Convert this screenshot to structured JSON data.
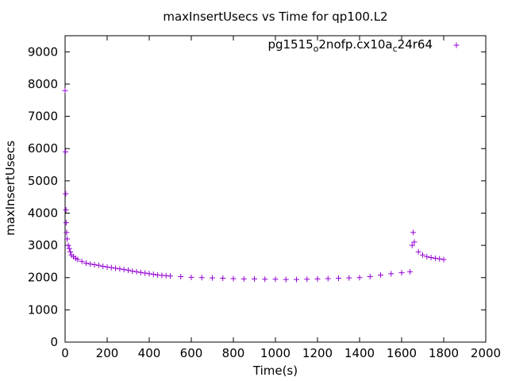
{
  "chart_data": {
    "type": "scatter",
    "title": "maxInsertUsecs vs Time for qp100.L2",
    "xlabel": "Time(s)",
    "ylabel": "maxInsertUsecs",
    "xlim": [
      0,
      2000
    ],
    "ylim": [
      0,
      9500
    ],
    "x_ticks": [
      0,
      200,
      400,
      600,
      800,
      1000,
      1200,
      1400,
      1600,
      1800,
      2000
    ],
    "y_ticks": [
      0,
      1000,
      2000,
      3000,
      4000,
      5000,
      6000,
      7000,
      8000,
      9000
    ],
    "grid": false,
    "legend_position": "top-right",
    "series_color": "#9400d3",
    "marker": "plus",
    "legend": {
      "label_main": "pg1515",
      "label_sub1": "o",
      "label_mid": "2nofp.cx10a",
      "label_sub2": "c",
      "label_end": "24r64"
    },
    "series": [
      {
        "name": "pg1515_o2nofp.cx10a_c24r64",
        "points": [
          [
            0,
            7800
          ],
          [
            2,
            5900
          ],
          [
            3,
            4600
          ],
          [
            4,
            4100
          ],
          [
            5,
            3700
          ],
          [
            7,
            3400
          ],
          [
            10,
            3200
          ],
          [
            15,
            3000
          ],
          [
            20,
            2900
          ],
          [
            25,
            2800
          ],
          [
            30,
            2700
          ],
          [
            40,
            2650
          ],
          [
            50,
            2600
          ],
          [
            60,
            2560
          ],
          [
            80,
            2500
          ],
          [
            100,
            2450
          ],
          [
            120,
            2420
          ],
          [
            140,
            2400
          ],
          [
            160,
            2380
          ],
          [
            180,
            2350
          ],
          [
            200,
            2330
          ],
          [
            220,
            2310
          ],
          [
            240,
            2290
          ],
          [
            260,
            2270
          ],
          [
            280,
            2250
          ],
          [
            300,
            2230
          ],
          [
            320,
            2200
          ],
          [
            340,
            2180
          ],
          [
            360,
            2160
          ],
          [
            380,
            2140
          ],
          [
            400,
            2120
          ],
          [
            420,
            2100
          ],
          [
            440,
            2080
          ],
          [
            460,
            2070
          ],
          [
            480,
            2060
          ],
          [
            500,
            2050
          ],
          [
            550,
            2030
          ],
          [
            600,
            2010
          ],
          [
            650,
            2000
          ],
          [
            700,
            1990
          ],
          [
            750,
            1980
          ],
          [
            800,
            1970
          ],
          [
            850,
            1960
          ],
          [
            900,
            1960
          ],
          [
            950,
            1950
          ],
          [
            1000,
            1950
          ],
          [
            1050,
            1940
          ],
          [
            1100,
            1940
          ],
          [
            1150,
            1950
          ],
          [
            1200,
            1960
          ],
          [
            1250,
            1970
          ],
          [
            1300,
            1980
          ],
          [
            1350,
            1990
          ],
          [
            1400,
            2000
          ],
          [
            1450,
            2030
          ],
          [
            1500,
            2080
          ],
          [
            1550,
            2120
          ],
          [
            1600,
            2150
          ],
          [
            1640,
            2180
          ],
          [
            1650,
            3000
          ],
          [
            1655,
            3400
          ],
          [
            1660,
            3100
          ],
          [
            1680,
            2800
          ],
          [
            1700,
            2700
          ],
          [
            1720,
            2650
          ],
          [
            1740,
            2620
          ],
          [
            1760,
            2600
          ],
          [
            1780,
            2580
          ],
          [
            1800,
            2560
          ]
        ]
      }
    ]
  }
}
